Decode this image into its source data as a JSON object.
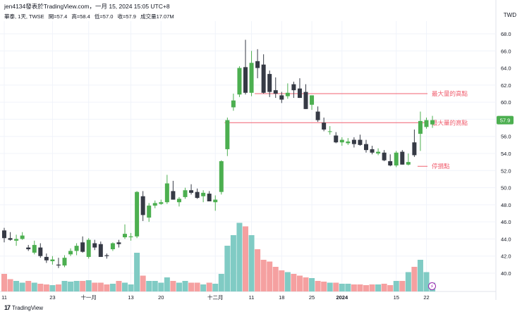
{
  "header": {
    "line1": "jen4134發表於TradingView.com，一月 15, 2024 15:05 UTC+8",
    "symbol": "華泰, 1天, TWSE",
    "open": "開=57.4",
    "high": "高=58.4",
    "low": "低=57.0",
    "close": "收=57.9",
    "volume": "成交量17.07M"
  },
  "currency": "TWD",
  "brand": "TradingView",
  "brand_logo": "17",
  "replay_icon": "⚡",
  "colors": {
    "up": "#4caf50",
    "down": "#363a45",
    "vol_up": "#80cbc4",
    "vol_down": "#f5a0a0",
    "level_line": "#f06070",
    "annotation_text": "#f06070",
    "last_price_badge": "#4caf50",
    "grid": "#f0f3fa"
  },
  "chart_data": {
    "type": "candlestick",
    "ylim": [
      39,
      69.5
    ],
    "y_ticks": [
      "40.0",
      "42.0",
      "44.0",
      "46.0",
      "48.0",
      "50.0",
      "52.0",
      "54.0",
      "56.0",
      "58.0",
      "60.0",
      "62.0",
      "64.0",
      "66.0",
      "68.0"
    ],
    "x_ticks": [
      {
        "label": "11",
        "bar": 0
      },
      {
        "label": "23",
        "bar": 8
      },
      {
        "label": "十一月",
        "bar": 14
      },
      {
        "label": "13",
        "bar": 21
      },
      {
        "label": "20",
        "bar": 26
      },
      {
        "label": "十二月",
        "bar": 35
      },
      {
        "label": "11",
        "bar": 41
      },
      {
        "label": "18",
        "bar": 46
      },
      {
        "label": "25",
        "bar": 51
      },
      {
        "label": "2024",
        "bar": 56
      },
      {
        "label": "15",
        "bar": 65
      },
      {
        "label": "22",
        "bar": 70
      }
    ],
    "last_price": "57.9",
    "candles": [
      [
        45.0,
        45.3,
        43.6,
        44.1
      ],
      [
        44.1,
        44.8,
        43.8,
        43.9
      ],
      [
        43.8,
        44.5,
        43.2,
        44.0
      ],
      [
        44.0,
        44.8,
        43.9,
        44.4
      ],
      [
        43.0,
        43.3,
        42.6,
        42.8
      ],
      [
        42.4,
        43.8,
        42.2,
        43.3
      ],
      [
        43.0,
        43.5,
        41.8,
        42.0
      ],
      [
        41.9,
        42.3,
        41.2,
        41.5
      ],
      [
        41.4,
        42.0,
        41.0,
        41.6
      ],
      [
        41.0,
        41.8,
        40.6,
        40.9
      ],
      [
        40.9,
        42.1,
        40.7,
        41.8
      ],
      [
        42.2,
        42.9,
        42.0,
        42.6
      ],
      [
        42.6,
        43.5,
        42.1,
        43.2
      ],
      [
        43.6,
        44.3,
        42.4,
        42.5
      ],
      [
        41.9,
        44.1,
        41.7,
        43.9
      ],
      [
        43.5,
        43.9,
        42.7,
        43.0
      ],
      [
        43.4,
        43.7,
        42.1,
        41.9
      ],
      [
        42.1,
        42.3,
        41.7,
        42.0
      ],
      [
        42.8,
        43.6,
        42.6,
        43.5
      ],
      [
        43.6,
        43.9,
        43.0,
        43.4
      ],
      [
        44.2,
        45.7,
        44.0,
        44.6
      ],
      [
        44.2,
        44.7,
        43.8,
        44.3
      ],
      [
        44.3,
        49.6,
        44.1,
        49.5
      ],
      [
        49.0,
        49.6,
        46.1,
        46.8
      ],
      [
        46.5,
        48.2,
        46.0,
        47.9
      ],
      [
        47.9,
        48.5,
        47.6,
        48.2
      ],
      [
        48.1,
        48.6,
        48.0,
        48.3
      ],
      [
        48.3,
        51.5,
        48.1,
        50.5
      ],
      [
        49.6,
        50.8,
        48.6,
        48.6
      ],
      [
        48.3,
        48.9,
        47.8,
        48.7
      ],
      [
        48.9,
        50.0,
        48.7,
        49.7
      ],
      [
        49.7,
        50.4,
        49.2,
        49.4
      ],
      [
        49.5,
        49.9,
        48.7,
        48.8
      ],
      [
        49.0,
        49.7,
        48.3,
        49.4
      ],
      [
        49.3,
        49.6,
        48.4,
        48.4
      ],
      [
        48.3,
        49.1,
        47.3,
        48.6
      ],
      [
        49.5,
        53.2,
        49.2,
        53.1
      ],
      [
        54.5,
        58.2,
        53.7,
        57.9
      ],
      [
        59.4,
        61.0,
        59.0,
        60.2
      ],
      [
        60.9,
        64.2,
        60.6,
        64.0
      ],
      [
        64.1,
        67.3,
        60.9,
        61.1
      ],
      [
        61.1,
        66.0,
        60.7,
        64.6
      ],
      [
        64.8,
        66.2,
        62.8,
        64.0
      ],
      [
        64.4,
        65.6,
        61.0,
        61.1
      ],
      [
        63.3,
        63.7,
        60.6,
        61.2
      ],
      [
        61.4,
        62.9,
        60.5,
        61.0
      ],
      [
        60.8,
        61.2,
        59.9,
        60.3
      ],
      [
        60.7,
        62.2,
        60.4,
        61.1
      ],
      [
        62.1,
        62.4,
        60.5,
        61.4
      ],
      [
        61.6,
        62.8,
        60.5,
        60.5
      ],
      [
        61.2,
        62.1,
        59.2,
        59.2
      ],
      [
        59.7,
        60.8,
        59.1,
        60.8
      ],
      [
        58.9,
        59.5,
        57.7,
        57.9
      ],
      [
        57.6,
        58.2,
        56.6,
        56.8
      ],
      [
        56.6,
        57.2,
        56.2,
        56.6
      ],
      [
        56.1,
        56.5,
        55.2,
        55.3
      ],
      [
        55.3,
        55.9,
        54.9,
        55.6
      ],
      [
        55.2,
        55.8,
        55.0,
        55.4
      ],
      [
        55.6,
        55.9,
        54.7,
        55.1
      ],
      [
        55.6,
        56.2,
        54.9,
        55.0
      ],
      [
        55.1,
        55.6,
        54.1,
        54.4
      ],
      [
        54.5,
        54.9,
        53.9,
        54.1
      ],
      [
        54.0,
        54.6,
        53.8,
        54.2
      ],
      [
        54.1,
        54.4,
        53.1,
        53.2
      ],
      [
        53.1,
        53.9,
        52.5,
        52.6
      ],
      [
        52.6,
        54.3,
        52.4,
        54.1
      ],
      [
        54.2,
        54.4,
        52.7,
        52.7
      ],
      [
        52.7,
        54.0,
        52.6,
        53.0
      ],
      [
        55.3,
        56.8,
        53.6,
        53.8
      ],
      [
        56.3,
        58.9,
        54.3,
        57.8
      ],
      [
        57.1,
        58.2,
        56.9,
        57.9
      ],
      [
        57.4,
        58.4,
        57.0,
        57.9
      ]
    ],
    "volumes": [
      0.5,
      0.35,
      0.3,
      0.25,
      0.3,
      0.25,
      0.22,
      0.2,
      0.18,
      0.2,
      0.3,
      0.28,
      0.3,
      0.3,
      0.32,
      0.25,
      0.25,
      0.2,
      0.22,
      0.3,
      0.25,
      0.2,
      1.1,
      0.45,
      0.3,
      0.3,
      0.25,
      0.4,
      0.3,
      0.25,
      0.3,
      0.25,
      0.25,
      0.2,
      0.25,
      0.22,
      0.5,
      1.3,
      1.6,
      1.95,
      1.85,
      1.6,
      1.2,
      0.9,
      0.85,
      0.7,
      0.6,
      0.55,
      0.5,
      0.45,
      0.4,
      0.38,
      0.3,
      0.28,
      0.25,
      0.25,
      0.22,
      0.22,
      0.2,
      0.2,
      0.18,
      0.2,
      0.2,
      0.22,
      0.18,
      0.3,
      0.3,
      0.55,
      0.7,
      0.9,
      0.55,
      0.25
    ],
    "annotations": [
      {
        "text": "最大量的高點",
        "price": 61.0,
        "from_bar": 42
      },
      {
        "text": "最大量的高點",
        "price": 57.6,
        "from_bar": 37
      },
      {
        "text": "停損點",
        "price": 52.5,
        "from_bar": 69
      }
    ]
  }
}
